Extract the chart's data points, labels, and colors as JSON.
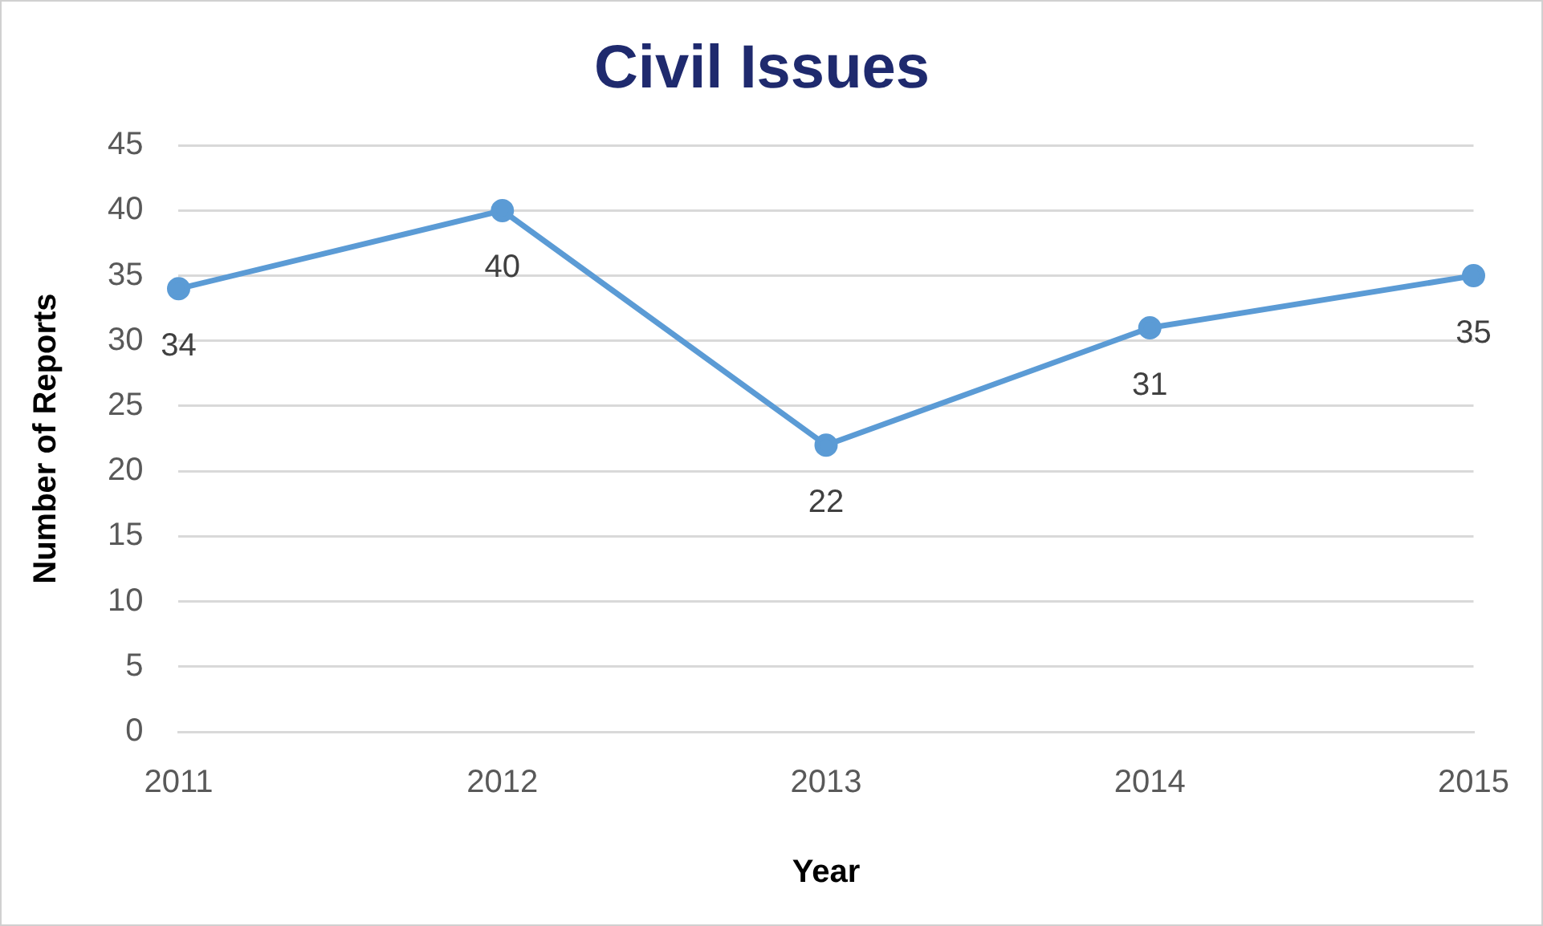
{
  "chart_data": {
    "type": "line",
    "title": "Civil Issues",
    "xlabel": "Year",
    "ylabel": "Number of Reports",
    "categories": [
      "2011",
      "2012",
      "2013",
      "2014",
      "2015"
    ],
    "series": [
      {
        "color": "#5b9bd5",
        "values": [
          34,
          40,
          22,
          31,
          35
        ]
      }
    ],
    "ylim": [
      0,
      45
    ],
    "yticks": [
      0,
      5,
      10,
      15,
      20,
      25,
      30,
      35,
      40,
      45
    ],
    "grid": "y",
    "legend": false,
    "marker": "circle",
    "line_style": "solid",
    "data_labels": true
  }
}
